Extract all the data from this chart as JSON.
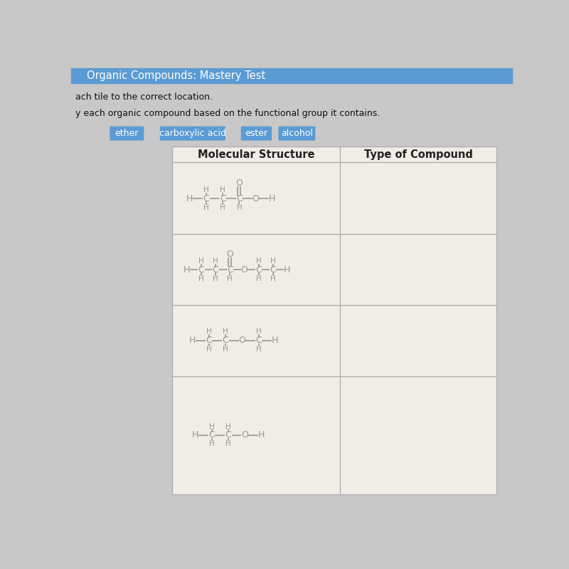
{
  "bg_color": "#c8c8c8",
  "title_bar_color": "#5b9bd5",
  "title_text": "Organic Compounds: Mastery Test",
  "instruction1": "ach tile to the correct location.",
  "instruction2": "y each organic compound based on the functional group it contains.",
  "tiles": [
    "ether",
    "carboxylic acid",
    "ester",
    "alcohol"
  ],
  "tile_color": "#5b9bd5",
  "tile_text_color": "#ffffff",
  "table_header1": "Molecular Structure",
  "table_header2": "Type of Compound",
  "table_bg": "#f0ece6",
  "table_line_color": "#b0b0b0",
  "struct_color": "#999999",
  "figsize": [
    8.0,
    8.0
  ],
  "dpi": 100
}
